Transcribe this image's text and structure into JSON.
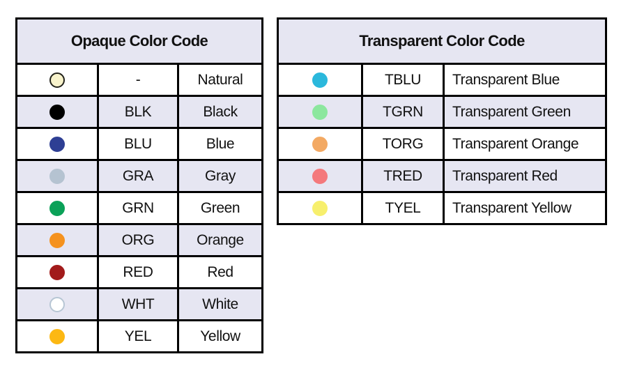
{
  "colors": {
    "row_alt_bg": "#e6e6f2",
    "table_border": "#000000",
    "text": "#111111"
  },
  "tables": [
    {
      "title": "Opaque Color Code",
      "rows": [
        {
          "code": "-",
          "name": "Natural",
          "dot_fill": "#f8f3cc",
          "dot_border": "#21211a"
        },
        {
          "code": "BLK",
          "name": "Black",
          "dot_fill": "#000000",
          "dot_border": "#000000"
        },
        {
          "code": "BLU",
          "name": "Blue",
          "dot_fill": "#2e3f94",
          "dot_border": "#2e3f94"
        },
        {
          "code": "GRA",
          "name": "Gray",
          "dot_fill": "#b5c3d1",
          "dot_border": "#b5c3d1"
        },
        {
          "code": "GRN",
          "name": "Green",
          "dot_fill": "#0ba158",
          "dot_border": "#0ba158"
        },
        {
          "code": "ORG",
          "name": "Orange",
          "dot_fill": "#f5921e",
          "dot_border": "#f5921e"
        },
        {
          "code": "RED",
          "name": "Red",
          "dot_fill": "#a21b1b",
          "dot_border": "#a21b1b"
        },
        {
          "code": "WHT",
          "name": "White",
          "dot_fill": "#ffffff",
          "dot_border": "#b7c6d4"
        },
        {
          "code": "YEL",
          "name": "Yellow",
          "dot_fill": "#fcb813",
          "dot_border": "#fcb813"
        }
      ]
    },
    {
      "title": "Transparent Color Code",
      "rows": [
        {
          "code": "TBLU",
          "name": "Transparent Blue",
          "dot_fill": "#2bb8dc",
          "dot_border": "#2bb8dc"
        },
        {
          "code": "TGRN",
          "name": "Transparent Green",
          "dot_fill": "#8ce79e",
          "dot_border": "#8ce79e"
        },
        {
          "code": "TORG",
          "name": "Transparent Orange",
          "dot_fill": "#f3a963",
          "dot_border": "#f3a963"
        },
        {
          "code": "TRED",
          "name": "Transparent Red",
          "dot_fill": "#f4797c",
          "dot_border": "#f4797c"
        },
        {
          "code": "TYEL",
          "name": "Transparent Yellow",
          "dot_fill": "#f7ef6d",
          "dot_border": "#f7ef6d"
        }
      ]
    }
  ]
}
